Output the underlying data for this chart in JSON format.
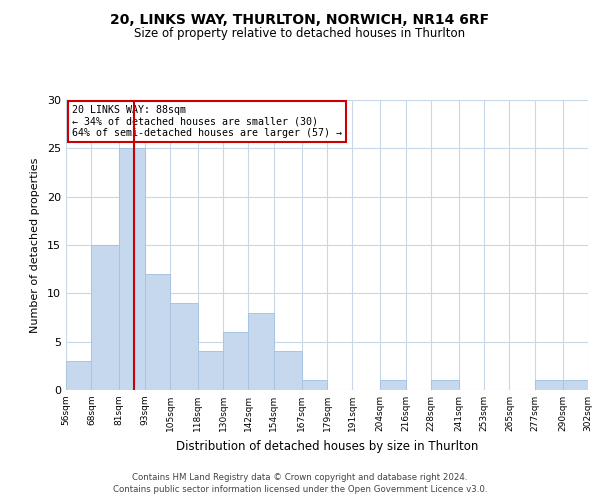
{
  "title": "20, LINKS WAY, THURLTON, NORWICH, NR14 6RF",
  "subtitle": "Size of property relative to detached houses in Thurlton",
  "xlabel": "Distribution of detached houses by size in Thurlton",
  "ylabel": "Number of detached properties",
  "bar_color": "#c5d8ed",
  "bar_edge_color": "#a8c4e0",
  "vline_color": "#cc0000",
  "vline_x": 88,
  "annotation_title": "20 LINKS WAY: 88sqm",
  "annotation_line1": "← 34% of detached houses are smaller (30)",
  "annotation_line2": "64% of semi-detached houses are larger (57) →",
  "annotation_box_color": "#cc0000",
  "bin_edges": [
    56,
    68,
    81,
    93,
    105,
    118,
    130,
    142,
    154,
    167,
    179,
    191,
    204,
    216,
    228,
    241,
    253,
    265,
    277,
    290,
    302
  ],
  "bin_heights": [
    3,
    15,
    25,
    12,
    9,
    4,
    6,
    8,
    4,
    1,
    0,
    0,
    1,
    0,
    1,
    0,
    0,
    0,
    1,
    1
  ],
  "tick_labels": [
    "56sqm",
    "68sqm",
    "81sqm",
    "93sqm",
    "105sqm",
    "118sqm",
    "130sqm",
    "142sqm",
    "154sqm",
    "167sqm",
    "179sqm",
    "191sqm",
    "204sqm",
    "216sqm",
    "228sqm",
    "241sqm",
    "253sqm",
    "265sqm",
    "277sqm",
    "290sqm",
    "302sqm"
  ],
  "ylim": [
    0,
    30
  ],
  "yticks": [
    0,
    5,
    10,
    15,
    20,
    25,
    30
  ],
  "footer1": "Contains HM Land Registry data © Crown copyright and database right 2024.",
  "footer2": "Contains public sector information licensed under the Open Government Licence v3.0.",
  "background_color": "#ffffff",
  "grid_color": "#c8d8e8"
}
